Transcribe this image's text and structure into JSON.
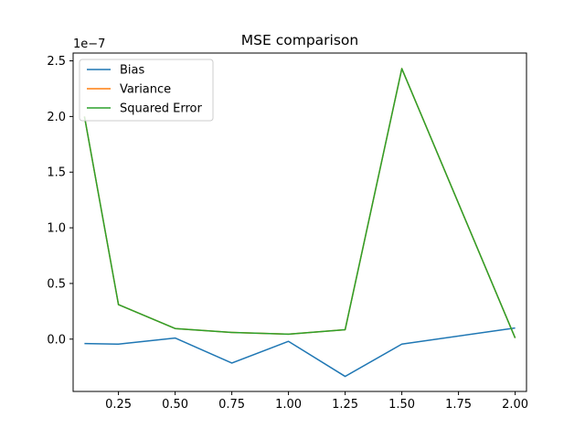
{
  "chart_data": {
    "type": "line",
    "title": "MSE comparison",
    "xlabel": "",
    "ylabel": "",
    "y_scale_label": "1e−7",
    "xlim": [
      0.05,
      2.05
    ],
    "ylim": [
      -0.47,
      2.57
    ],
    "x_ticks": [
      0.25,
      0.5,
      0.75,
      1.0,
      1.25,
      1.5,
      1.75,
      2.0
    ],
    "x_tick_labels": [
      "0.25",
      "0.50",
      "0.75",
      "1.00",
      "1.25",
      "1.50",
      "1.75",
      "2.00"
    ],
    "y_ticks": [
      0.0,
      0.5,
      1.0,
      1.5,
      2.0,
      2.5
    ],
    "y_tick_labels": [
      "0.0",
      "0.5",
      "1.0",
      "1.5",
      "2.0",
      "2.5"
    ],
    "grid": false,
    "legend_position": "top-left",
    "x": [
      0.1,
      0.25,
      0.5,
      0.75,
      1.0,
      1.25,
      1.5,
      2.0
    ],
    "series": [
      {
        "name": "Bias",
        "color": "#1f77b4",
        "values": [
          -0.04,
          -0.045,
          0.01,
          -0.215,
          -0.02,
          -0.335,
          -0.045,
          0.1
        ]
      },
      {
        "name": "Variance",
        "color": "#ff7f0e",
        "values": [
          2.0,
          0.31,
          0.095,
          0.06,
          0.045,
          0.085,
          2.43,
          0.01
        ]
      },
      {
        "name": "Squared Error",
        "color": "#2ca02c",
        "values": [
          2.0,
          0.31,
          0.095,
          0.06,
          0.045,
          0.085,
          2.43,
          0.01
        ]
      }
    ]
  }
}
